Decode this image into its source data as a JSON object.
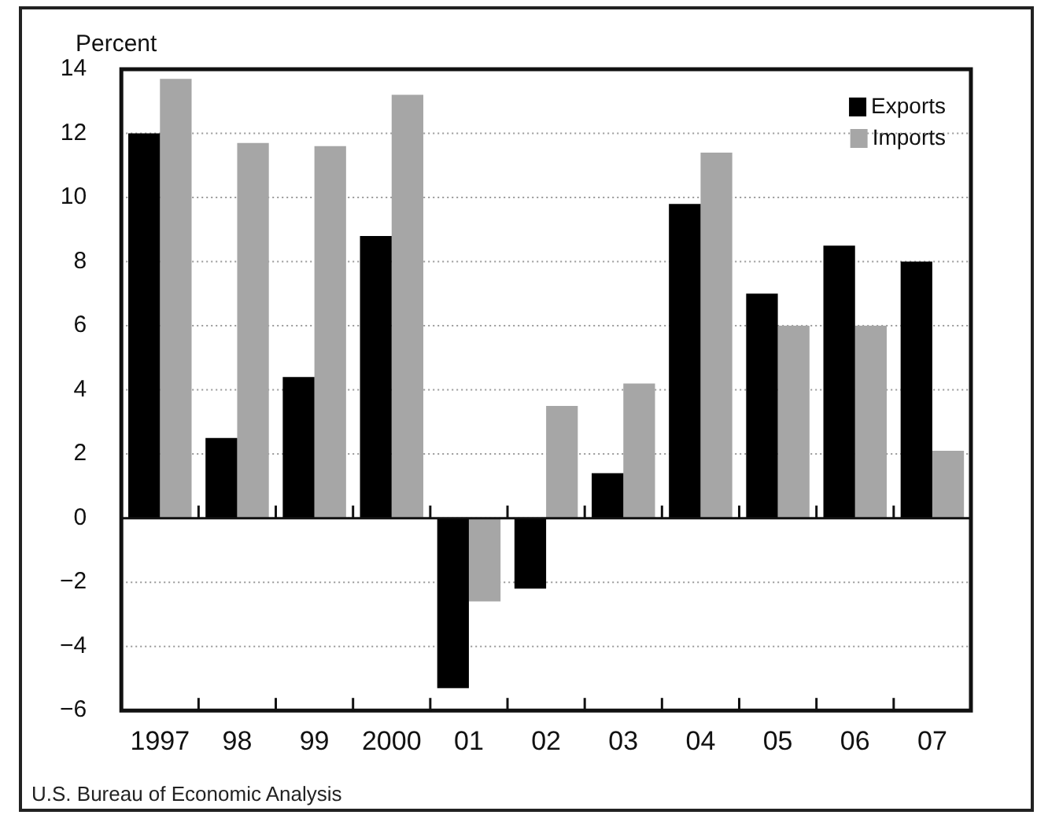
{
  "chart_data": {
    "type": "bar",
    "ylabel": "Percent",
    "annotations": [
      "U.S. Bureau of Economic Analysis"
    ],
    "categories": [
      "1997",
      "98",
      "99",
      "2000",
      "01",
      "02",
      "03",
      "04",
      "05",
      "06",
      "07"
    ],
    "series": [
      {
        "name": "Exports",
        "color": "#000000",
        "values": [
          12.0,
          2.5,
          4.4,
          8.8,
          -5.3,
          -2.2,
          1.4,
          9.8,
          7.0,
          8.5,
          8.0
        ]
      },
      {
        "name": "Imports",
        "color": "#a6a6a6",
        "values": [
          13.7,
          11.7,
          11.6,
          13.2,
          -2.6,
          3.5,
          4.2,
          11.4,
          6.0,
          6.0,
          2.1
        ]
      }
    ],
    "ylim": [
      -6,
      14
    ],
    "yticks": [
      -6,
      -4,
      -2,
      0,
      2,
      4,
      6,
      8,
      10,
      12,
      14
    ],
    "grid": "y",
    "legend": "top right"
  }
}
